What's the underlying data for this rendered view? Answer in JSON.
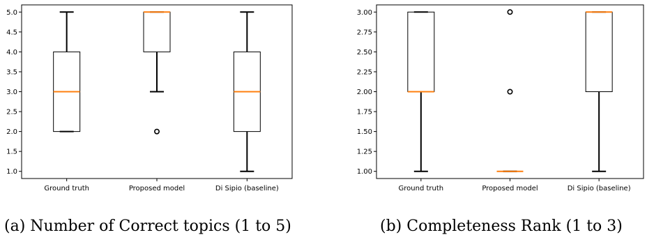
{
  "figure": {
    "panels": [
      {
        "caption": "(a) Number of Correct topics (1 to 5)",
        "chart_data": {
          "type": "box",
          "categories": [
            "Ground truth",
            "Proposed model",
            "Di Sipio (baseline)"
          ],
          "ylim": [
            0.82,
            5.18
          ],
          "yticks": [
            "1.0",
            "1.5",
            "2.0",
            "2.5",
            "3.0",
            "3.5",
            "4.0",
            "4.5",
            "5.0"
          ],
          "boxes": [
            {
              "whislo": 2.0,
              "q1": 2.0,
              "med": 3.0,
              "q3": 4.0,
              "whishi": 5.0,
              "fliers": []
            },
            {
              "whislo": 3.0,
              "q1": 4.0,
              "med": 5.0,
              "q3": 5.0,
              "whishi": 5.0,
              "fliers": [
                2.0
              ]
            },
            {
              "whislo": 1.0,
              "q1": 2.0,
              "med": 3.0,
              "q3": 4.0,
              "whishi": 5.0,
              "fliers": []
            }
          ],
          "grid": false
        }
      },
      {
        "caption": "(b) Completeness Rank (1 to 3)",
        "chart_data": {
          "type": "box",
          "categories": [
            "Ground truth",
            "Proposed model",
            "Di Sipio (baseline)"
          ],
          "ylim": [
            0.91,
            3.09
          ],
          "yticks": [
            "1.00",
            "1.25",
            "1.50",
            "1.75",
            "2.00",
            "2.25",
            "2.50",
            "2.75",
            "3.00"
          ],
          "boxes": [
            {
              "whislo": 1.0,
              "q1": 2.0,
              "med": 2.0,
              "q3": 3.0,
              "whishi": 3.0,
              "fliers": []
            },
            {
              "whislo": 1.0,
              "q1": 1.0,
              "med": 1.0,
              "q3": 1.0,
              "whishi": 1.0,
              "fliers": [
                2.0,
                3.0
              ]
            },
            {
              "whislo": 1.0,
              "q1": 2.0,
              "med": 3.0,
              "q3": 3.0,
              "whishi": 3.0,
              "fliers": []
            }
          ],
          "grid": false
        }
      }
    ],
    "colors": {
      "box": "#000000",
      "median": "#ff7f0e",
      "flier": "#000000"
    }
  }
}
